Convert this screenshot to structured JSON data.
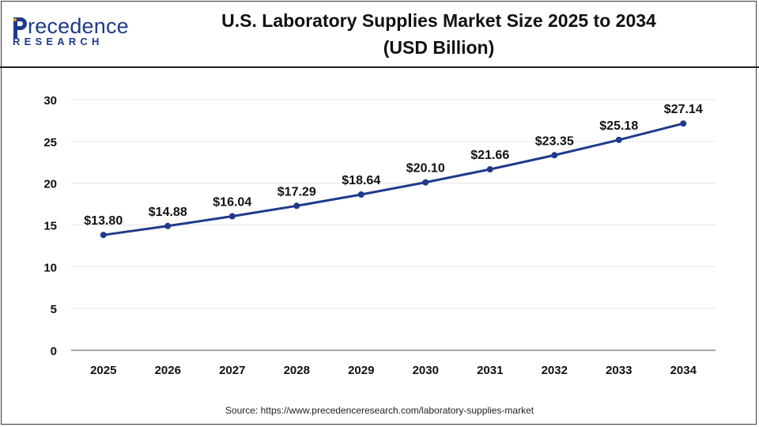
{
  "header": {
    "logo_word": "recedence",
    "logo_sub": "RESEARCH",
    "title_line1": "U.S. Laboratory Supplies Market Size 2025 to 2034",
    "title_line2": "(USD Billion)"
  },
  "colors": {
    "brand": "#1f3a8a",
    "line": "#1f3a8a",
    "grid": "#e6e6e6",
    "axis": "#8c8c8c"
  },
  "footer": {
    "source": "Source: https://www.precedenceresearch.com/laboratory-supplies-market"
  },
  "chart_data": {
    "type": "line",
    "title": "U.S. Laboratory Supplies Market Size 2025 to 2034 (USD Billion)",
    "xlabel": "",
    "ylabel": "",
    "ylim": [
      0,
      30
    ],
    "yticks": [
      0,
      5,
      10,
      15,
      20,
      25,
      30
    ],
    "grid": true,
    "categories": [
      "2025",
      "2026",
      "2027",
      "2028",
      "2029",
      "2030",
      "2031",
      "2032",
      "2033",
      "2034"
    ],
    "series": [
      {
        "values": [
          13.8,
          14.88,
          16.04,
          17.29,
          18.64,
          20.1,
          21.66,
          23.35,
          25.18,
          27.14
        ],
        "labels": [
          "$13.80",
          "$14.88",
          "$16.04",
          "$17.29",
          "$18.64",
          "$20.10",
          "$21.66",
          "$23.35",
          "$25.18",
          "$27.14"
        ]
      }
    ]
  }
}
